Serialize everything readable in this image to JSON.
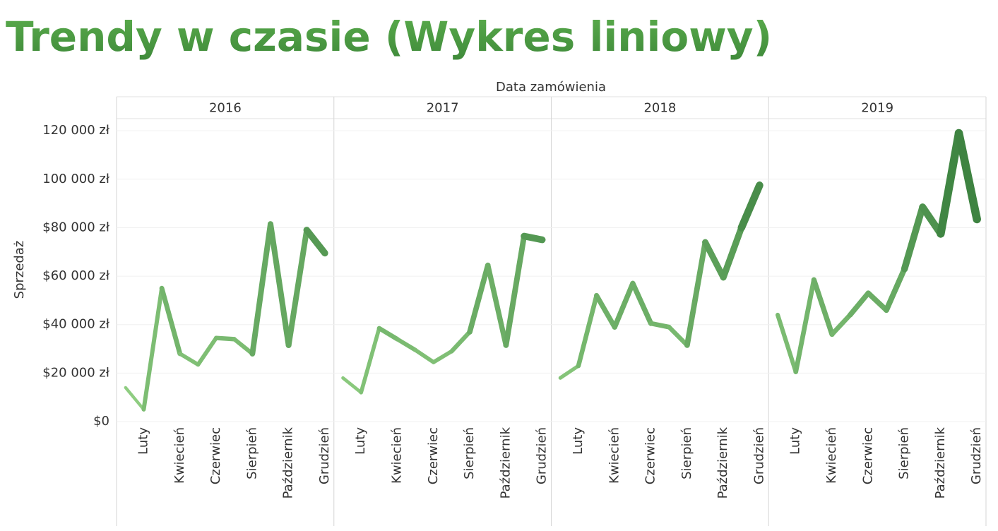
{
  "chart_data": {
    "type": "line",
    "title": "Trendy w czasie (Wykres liniowy)",
    "facet_label": "Data zamówienia",
    "y_label": "Sprzedaż",
    "categories": [
      null,
      "Luty",
      null,
      "Kwiecień",
      null,
      "Czerwiec",
      null,
      "Sierpień",
      null,
      "Październik",
      null,
      "Grudzień"
    ],
    "series": [
      {
        "name": "2016",
        "values": [
          14000,
          5000,
          55000,
          28000,
          23500,
          34500,
          34000,
          28000,
          81500,
          31500,
          79000,
          69500
        ]
      },
      {
        "name": "2017",
        "values": [
          18000,
          12000,
          38500,
          34000,
          29500,
          24500,
          29000,
          37000,
          64500,
          31500,
          76500,
          75000
        ]
      },
      {
        "name": "2018",
        "values": [
          18000,
          23000,
          52000,
          39000,
          57000,
          40500,
          39000,
          31500,
          74000,
          59500,
          80000,
          97500
        ]
      },
      {
        "name": "2019",
        "values": [
          44000,
          20500,
          58500,
          36000,
          44000,
          53000,
          46000,
          63000,
          88500,
          77500,
          119000,
          83500
        ]
      }
    ],
    "color_range": [
      "#93d184",
      "#2e7535"
    ],
    "ylim": [
      0,
      125000
    ],
    "yticks": [
      {
        "value": 0,
        "label": "$0"
      },
      {
        "value": 20000,
        "label": "$20 000 zł"
      },
      {
        "value": 40000,
        "label": "$40 000 zł"
      },
      {
        "value": 60000,
        "label": "$60 000 zł"
      },
      {
        "value": 80000,
        "label": "$80 000 zł"
      },
      {
        "value": 100000,
        "label": "100 000 zł"
      },
      {
        "value": 120000,
        "label": "120 000 zł"
      }
    ],
    "grid": true
  }
}
